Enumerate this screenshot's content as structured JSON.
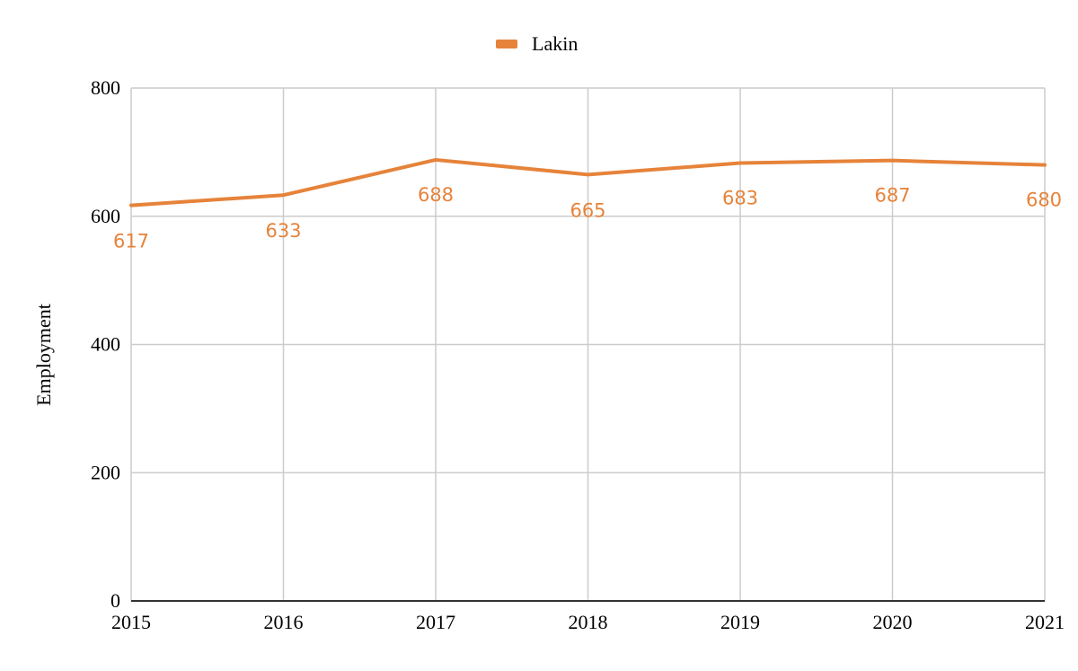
{
  "chart_data": {
    "type": "line",
    "title": "",
    "xlabel": "",
    "ylabel": "Employment",
    "categories": [
      "2015",
      "2016",
      "2017",
      "2018",
      "2019",
      "2020",
      "2021"
    ],
    "ylim": [
      0,
      800
    ],
    "yticks": [
      0,
      200,
      400,
      600,
      800
    ],
    "grid": true,
    "legend_position": "top-center",
    "series": [
      {
        "name": "Lakin",
        "color": "#e6833a",
        "values": [
          617,
          633,
          688,
          665,
          683,
          687,
          680
        ]
      }
    ]
  }
}
